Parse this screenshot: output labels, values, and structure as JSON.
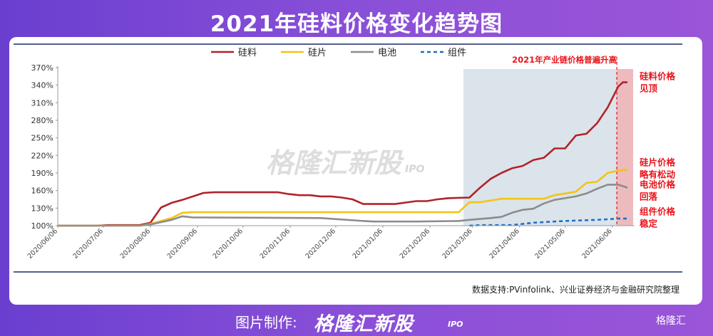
{
  "page_title": "2021年硅料价格变化趋势图",
  "footer": {
    "made_label": "图片制作:",
    "brand": "格隆汇新股",
    "brand_sub": "IPO",
    "corner_logo": "格隆汇"
  },
  "watermark": {
    "text": "格隆汇新股",
    "sub": "IPO"
  },
  "source_note": "数据支持:PVinfolink、兴业证券经济与金融研究院整理",
  "colors": {
    "silicon": "#b2232a",
    "wafer": "#f2c418",
    "cell": "#8c8c8c",
    "module": "#1f6fc5",
    "accent_red": "#e8141c"
  },
  "highlight_label": "2021年产业链价格普遍升高",
  "annotations": [
    {
      "lines": [
        "硅料价格",
        "见顶"
      ],
      "x": "2021/06/16",
      "y": 345
    },
    {
      "lines": [
        "硅片价格",
        "略有松动"
      ],
      "x": "2021/06/16",
      "y": 198
    },
    {
      "lines": [
        "电池价格",
        "回落"
      ],
      "x": "2021/06/16",
      "y": 160
    },
    {
      "lines": [
        "组件价格",
        "稳定"
      ],
      "x": "2021/06/16",
      "y": 114
    }
  ],
  "chart_data": {
    "type": "line",
    "x_start": "2020/06/06",
    "shaded_region": {
      "from": "2021/02/28",
      "to": "2021/06/09"
    },
    "highlight_band": {
      "from": "2021/06/09",
      "to": "2021/06/16"
    },
    "x_ticks": [
      "2020/06/06",
      "2020/07/06",
      "2020/08/06",
      "2020/09/06",
      "2020/10/06",
      "2020/11/06",
      "2020/12/06",
      "2021/01/06",
      "2021/02/06",
      "2021/03/06",
      "2021/04/06",
      "2021/05/06",
      "2021/06/06"
    ],
    "y_ticks": [
      "100%",
      "130%",
      "160%",
      "190%",
      "220%",
      "250%",
      "280%",
      "310%",
      "340%",
      "370%"
    ],
    "ylim": [
      100,
      370
    ],
    "series": [
      {
        "name": "硅料",
        "key": "silicon",
        "dash": "solid",
        "points": [
          [
            "2020/06/06",
            100
          ],
          [
            "2020/07/02",
            100
          ],
          [
            "2020/07/09",
            101
          ],
          [
            "2020/07/30",
            101
          ],
          [
            "2020/08/06",
            105
          ],
          [
            "2020/08/13",
            131
          ],
          [
            "2020/08/20",
            139
          ],
          [
            "2020/08/27",
            144
          ],
          [
            "2020/09/03",
            150
          ],
          [
            "2020/09/10",
            156
          ],
          [
            "2020/09/17",
            157
          ],
          [
            "2020/10/01",
            157
          ],
          [
            "2020/10/29",
            157
          ],
          [
            "2020/11/05",
            154
          ],
          [
            "2020/11/12",
            152
          ],
          [
            "2020/11/19",
            152
          ],
          [
            "2020/11/26",
            150
          ],
          [
            "2020/12/03",
            150
          ],
          [
            "2020/12/10",
            148
          ],
          [
            "2020/12/17",
            145
          ],
          [
            "2020/12/24",
            137
          ],
          [
            "2020/12/31",
            137
          ],
          [
            "2021/01/14",
            137
          ],
          [
            "2021/01/28",
            142
          ],
          [
            "2021/02/04",
            142
          ],
          [
            "2021/02/11",
            145
          ],
          [
            "2021/02/18",
            147
          ],
          [
            "2021/03/04",
            148
          ],
          [
            "2021/03/11",
            165
          ],
          [
            "2021/03/18",
            180
          ],
          [
            "2021/03/25",
            190
          ],
          [
            "2021/04/01",
            198
          ],
          [
            "2021/04/08",
            202
          ],
          [
            "2021/04/15",
            212
          ],
          [
            "2021/04/22",
            216
          ],
          [
            "2021/04/29",
            232
          ],
          [
            "2021/05/06",
            232
          ],
          [
            "2021/05/13",
            254
          ],
          [
            "2021/05/20",
            257
          ],
          [
            "2021/05/27",
            275
          ],
          [
            "2021/06/03",
            302
          ],
          [
            "2021/06/10",
            338
          ],
          [
            "2021/06/13",
            345
          ],
          [
            "2021/06/16",
            345
          ]
        ]
      },
      {
        "name": "硅片",
        "key": "wafer",
        "dash": "solid",
        "points": [
          [
            "2020/06/06",
            100
          ],
          [
            "2020/07/30",
            100
          ],
          [
            "2020/08/06",
            103
          ],
          [
            "2020/08/13",
            108
          ],
          [
            "2020/08/20",
            113
          ],
          [
            "2020/08/27",
            122
          ],
          [
            "2020/09/03",
            123
          ],
          [
            "2020/12/31",
            123
          ],
          [
            "2021/01/28",
            123
          ],
          [
            "2021/02/25",
            123
          ],
          [
            "2021/03/04",
            140
          ],
          [
            "2021/03/11",
            140
          ],
          [
            "2021/03/18",
            143
          ],
          [
            "2021/03/25",
            146
          ],
          [
            "2021/04/22",
            146
          ],
          [
            "2021/04/29",
            152
          ],
          [
            "2021/05/06",
            155
          ],
          [
            "2021/05/13",
            158
          ],
          [
            "2021/05/20",
            173
          ],
          [
            "2021/05/27",
            175
          ],
          [
            "2021/06/03",
            190
          ],
          [
            "2021/06/10",
            194
          ],
          [
            "2021/06/16",
            196
          ]
        ]
      },
      {
        "name": "电池",
        "key": "cell",
        "dash": "solid",
        "points": [
          [
            "2020/06/06",
            100
          ],
          [
            "2020/07/30",
            100
          ],
          [
            "2020/08/06",
            102
          ],
          [
            "2020/08/13",
            106
          ],
          [
            "2020/08/20",
            110
          ],
          [
            "2020/08/27",
            116
          ],
          [
            "2020/09/03",
            114
          ],
          [
            "2020/09/10",
            114
          ],
          [
            "2020/11/26",
            113
          ],
          [
            "2020/12/24",
            108
          ],
          [
            "2020/12/31",
            107
          ],
          [
            "2021/01/28",
            107
          ],
          [
            "2021/02/25",
            108
          ],
          [
            "2021/03/04",
            110
          ],
          [
            "2021/03/18",
            113
          ],
          [
            "2021/03/25",
            115
          ],
          [
            "2021/04/01",
            122
          ],
          [
            "2021/04/08",
            127
          ],
          [
            "2021/04/15",
            129
          ],
          [
            "2021/04/22",
            138
          ],
          [
            "2021/04/29",
            144
          ],
          [
            "2021/05/06",
            147
          ],
          [
            "2021/05/13",
            150
          ],
          [
            "2021/05/20",
            155
          ],
          [
            "2021/05/27",
            163
          ],
          [
            "2021/06/03",
            170
          ],
          [
            "2021/06/10",
            170
          ],
          [
            "2021/06/16",
            165
          ]
        ]
      },
      {
        "name": "组件",
        "key": "module",
        "dash": "dashed",
        "points": [
          [
            "2021/03/04",
            100
          ],
          [
            "2021/03/11",
            101
          ],
          [
            "2021/04/01",
            101
          ],
          [
            "2021/04/08",
            103
          ],
          [
            "2021/04/15",
            105
          ],
          [
            "2021/04/29",
            107
          ],
          [
            "2021/05/06",
            108
          ],
          [
            "2021/05/27",
            110
          ],
          [
            "2021/06/03",
            111
          ],
          [
            "2021/06/10",
            112
          ],
          [
            "2021/06/16",
            112
          ]
        ]
      }
    ]
  }
}
